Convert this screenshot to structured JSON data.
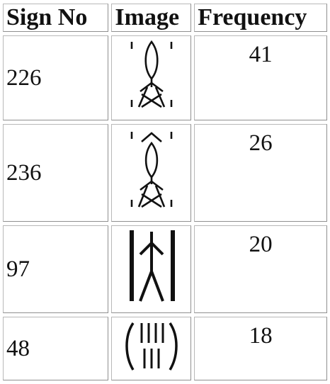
{
  "table": {
    "headers": [
      "Sign No",
      "Image",
      "Frequency"
    ],
    "rows": [
      {
        "sign_no": "226",
        "image_icon": "indus-sign-226-icon",
        "frequency": "41"
      },
      {
        "sign_no": "236",
        "image_icon": "indus-sign-236-icon",
        "frequency": "26"
      },
      {
        "sign_no": "97",
        "image_icon": "indus-sign-97-icon",
        "frequency": "20"
      },
      {
        "sign_no": "48",
        "image_icon": "indus-sign-48-icon",
        "frequency": "18"
      }
    ]
  }
}
